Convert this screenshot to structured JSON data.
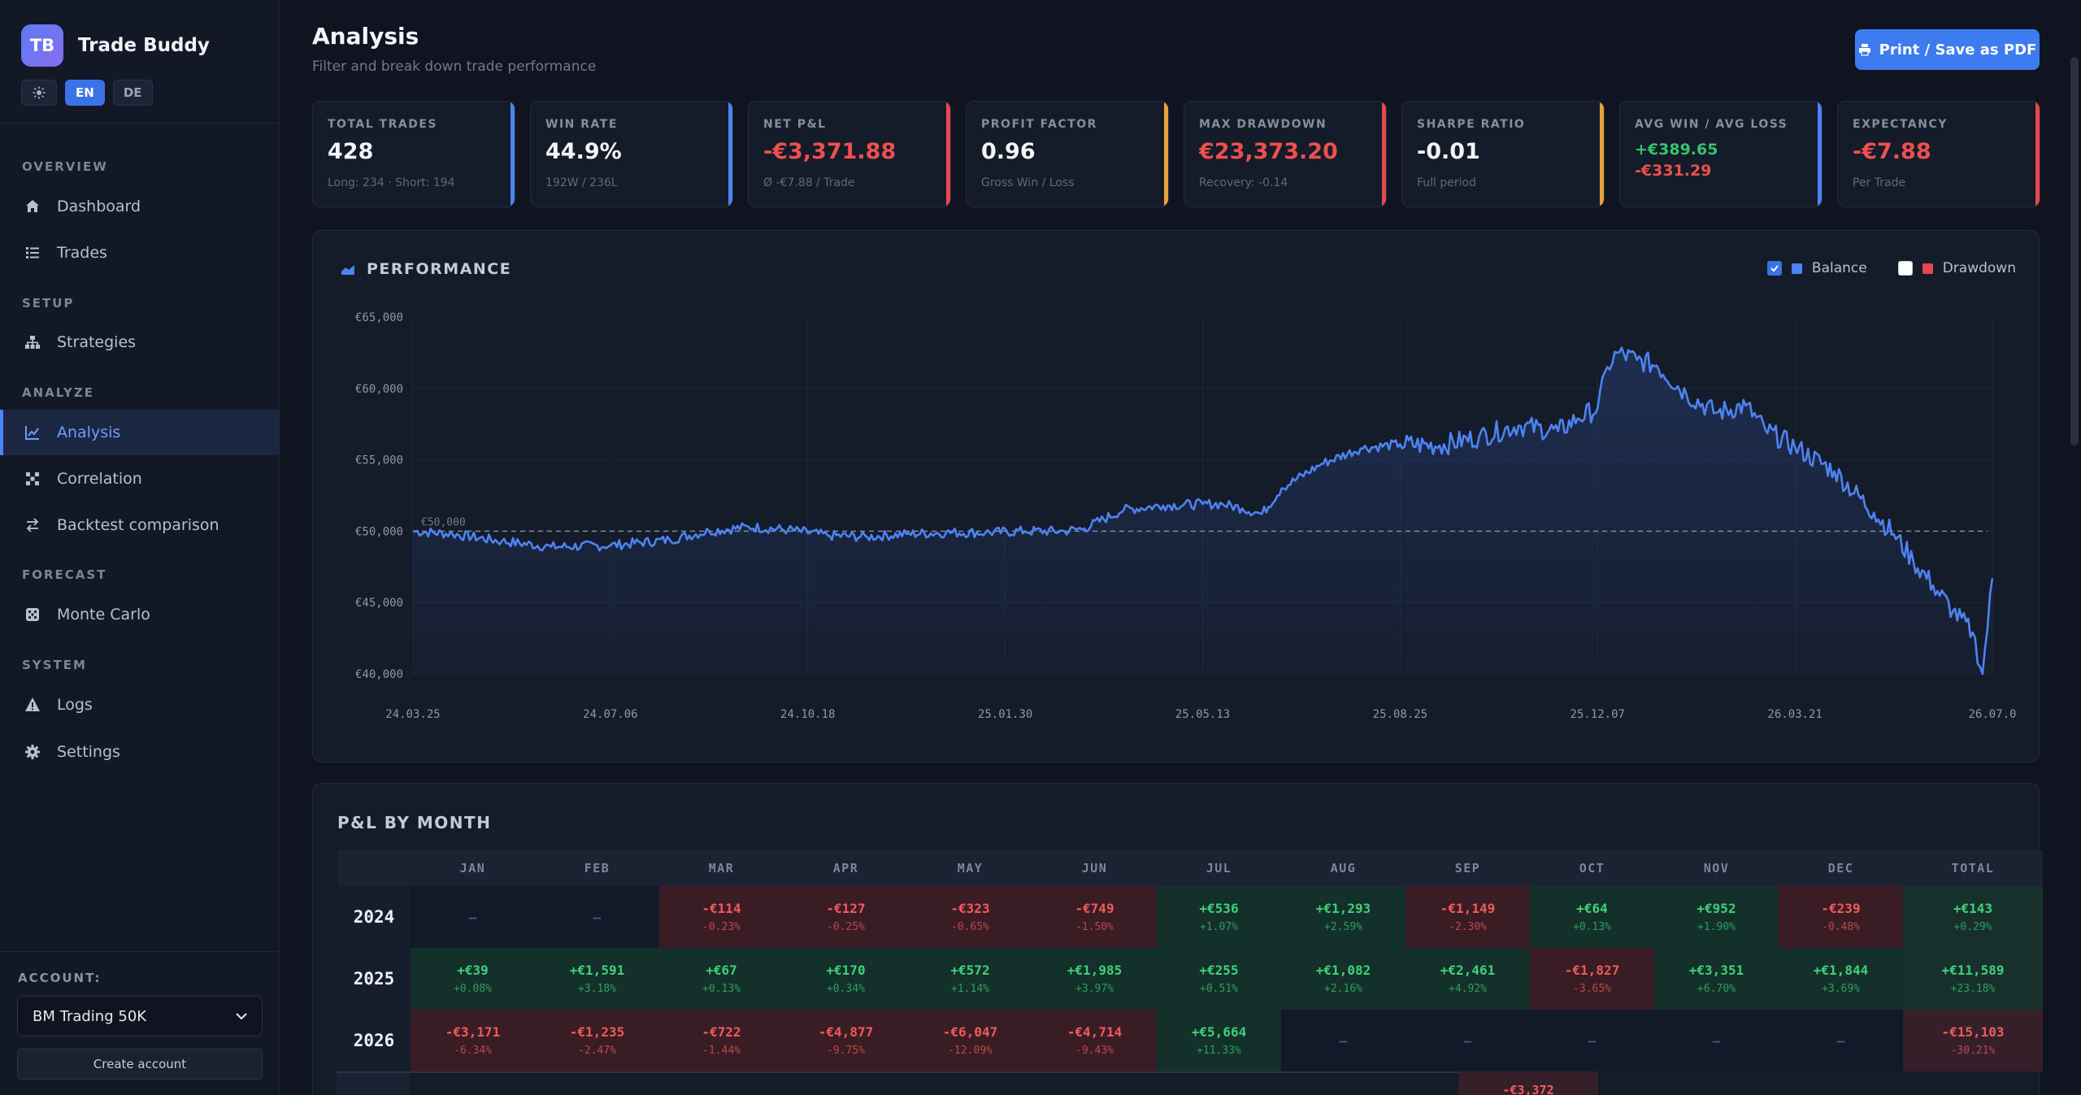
{
  "app": {
    "logo": "TB",
    "name": "Trade Buddy"
  },
  "lang": {
    "theme_icon": "sun-icon",
    "options": [
      "EN",
      "DE"
    ],
    "active": "EN"
  },
  "nav": {
    "sections": [
      {
        "title": "OVERVIEW",
        "items": [
          {
            "label": "Dashboard",
            "icon": "home-icon"
          },
          {
            "label": "Trades",
            "icon": "list-icon"
          }
        ]
      },
      {
        "title": "SETUP",
        "items": [
          {
            "label": "Strategies",
            "icon": "sitemap-icon"
          }
        ]
      },
      {
        "title": "ANALYZE",
        "items": [
          {
            "label": "Analysis",
            "icon": "chart-line-icon",
            "active": true
          },
          {
            "label": "Correlation",
            "icon": "network-icon"
          },
          {
            "label": "Backtest comparison",
            "icon": "swap-icon"
          }
        ]
      },
      {
        "title": "FORECAST",
        "items": [
          {
            "label": "Monte Carlo",
            "icon": "dice-icon"
          }
        ]
      },
      {
        "title": "SYSTEM",
        "items": [
          {
            "label": "Logs",
            "icon": "warning-icon"
          },
          {
            "label": "Settings",
            "icon": "gear-icon"
          }
        ]
      }
    ]
  },
  "account": {
    "label": "ACCOUNT:",
    "selected": "BM Trading 50K",
    "create_label": "Create account"
  },
  "header": {
    "title": "Analysis",
    "subtitle": "Filter and break down trade performance",
    "print_label": "Print / Save as PDF"
  },
  "kpis": [
    {
      "label": "TOTAL TRADES",
      "value": "428",
      "sub": "Long: 234 · Short: 194",
      "accent": "#4d83f2",
      "value_color": "#f2f4f8"
    },
    {
      "label": "WIN RATE",
      "value": "44.9%",
      "sub": "192W / 236L",
      "accent": "#4d83f2",
      "value_color": "#f2f4f8"
    },
    {
      "label": "NET P&L",
      "value": "-€3,371.88",
      "sub": "Ø -€7.88 / Trade",
      "accent": "#e6484e",
      "value_color": "#ee4f4f"
    },
    {
      "label": "PROFIT FACTOR",
      "value": "0.96",
      "sub": "Gross Win / Loss",
      "accent": "#e8a23a",
      "value_color": "#f2f4f8"
    },
    {
      "label": "MAX DRAWDOWN",
      "value": "€23,373.20",
      "sub": "Recovery: -0.14",
      "accent": "#e6484e",
      "value_color": "#ee4f4f"
    },
    {
      "label": "SHARPE RATIO",
      "value": "-0.01",
      "sub": "Full period",
      "accent": "#e8a23a",
      "value_color": "#f2f4f8"
    },
    {
      "label": "AVG WIN / AVG LOSS",
      "value_win": "+€389.65",
      "value_loss": "-€331.29",
      "accent": "#4d83f2"
    },
    {
      "label": "EXPECTANCY",
      "value": "-€7.88",
      "sub": "Per Trade",
      "accent": "#e6484e",
      "value_color": "#ee4f4f"
    }
  ],
  "performance": {
    "title": "PERFORMANCE",
    "icon": "area-chart-icon",
    "legend": [
      {
        "label": "Balance",
        "checked": true,
        "color": "#4d83f2"
      },
      {
        "label": "Drawdown",
        "checked": false,
        "color": "#e6484e"
      }
    ]
  },
  "chart_data": {
    "type": "line",
    "series": [
      {
        "name": "Balance",
        "color": "#4d83f2"
      }
    ],
    "baseline": {
      "value": 50000,
      "label": "€50,000"
    },
    "y_ticks": [
      "€65,000",
      "€60,000",
      "€55,000",
      "€50,000",
      "€45,000",
      "€40,000"
    ],
    "ylim": [
      40000,
      65000
    ],
    "x_ticks": [
      "24.03.25",
      "24.07.06",
      "24.10.18",
      "25.01.30",
      "25.05.13",
      "25.08.25",
      "25.12.07",
      "26.03.21",
      "26.07.0"
    ],
    "points": [
      [
        0,
        50000
      ],
      [
        0.2,
        49800
      ],
      [
        0.45,
        49300
      ],
      [
        0.7,
        48900
      ],
      [
        1.0,
        49000
      ],
      [
        1.3,
        49400
      ],
      [
        1.5,
        50000
      ],
      [
        1.7,
        50300
      ],
      [
        1.9,
        50100
      ],
      [
        2.1,
        49700
      ],
      [
        2.3,
        49600
      ],
      [
        2.5,
        49800
      ],
      [
        2.7,
        49900
      ],
      [
        2.9,
        49900
      ],
      [
        3.1,
        50000
      ],
      [
        3.3,
        50000
      ],
      [
        3.4,
        50200
      ],
      [
        3.6,
        51500
      ],
      [
        3.8,
        51800
      ],
      [
        4.0,
        51900
      ],
      [
        4.1,
        51900
      ],
      [
        4.2,
        51600
      ],
      [
        4.3,
        51200
      ],
      [
        4.4,
        53000
      ],
      [
        4.6,
        54700
      ],
      [
        4.8,
        55800
      ],
      [
        5.0,
        56100
      ],
      [
        5.2,
        56000
      ],
      [
        5.4,
        56600
      ],
      [
        5.6,
        57400
      ],
      [
        5.8,
        57000
      ],
      [
        5.9,
        57900
      ],
      [
        6.0,
        58600
      ],
      [
        6.05,
        61500
      ],
      [
        6.1,
        62500
      ],
      [
        6.2,
        62000
      ],
      [
        6.3,
        61600
      ],
      [
        6.45,
        59600
      ],
      [
        6.6,
        58300
      ],
      [
        6.75,
        58800
      ],
      [
        6.85,
        57100
      ],
      [
        7.0,
        55900
      ],
      [
        7.2,
        54200
      ],
      [
        7.4,
        51300
      ],
      [
        7.5,
        49800
      ],
      [
        7.6,
        47900
      ],
      [
        7.7,
        46200
      ],
      [
        7.8,
        44400
      ],
      [
        7.9,
        42900
      ],
      [
        7.95,
        40000
      ],
      [
        8.0,
        46700
      ]
    ]
  },
  "pl_by_month": {
    "title": "P&L BY MONTH",
    "columns": [
      "",
      "JAN",
      "FEB",
      "MAR",
      "APR",
      "MAY",
      "JUN",
      "JUL",
      "AUG",
      "SEP",
      "OCT",
      "NOV",
      "DEC",
      "TOTAL"
    ],
    "rows": [
      {
        "year": "2024",
        "cells": [
          {
            "v": "—",
            "p": ""
          },
          {
            "v": "—",
            "p": ""
          },
          {
            "v": "-€114",
            "p": "-0.23%"
          },
          {
            "v": "-€127",
            "p": "-0.25%"
          },
          {
            "v": "-€323",
            "p": "-0.65%"
          },
          {
            "v": "-€749",
            "p": "-1.50%"
          },
          {
            "v": "+€536",
            "p": "+1.07%"
          },
          {
            "v": "+€1,293",
            "p": "+2.59%"
          },
          {
            "v": "-€1,149",
            "p": "-2.30%"
          },
          {
            "v": "+€64",
            "p": "+0.13%"
          },
          {
            "v": "+€952",
            "p": "+1.90%"
          },
          {
            "v": "-€239",
            "p": "-0.48%"
          }
        ],
        "total": {
          "v": "+€143",
          "p": "+0.29%"
        }
      },
      {
        "year": "2025",
        "cells": [
          {
            "v": "+€39",
            "p": "+0.08%"
          },
          {
            "v": "+€1,591",
            "p": "+3.18%"
          },
          {
            "v": "+€67",
            "p": "+0.13%"
          },
          {
            "v": "+€170",
            "p": "+0.34%"
          },
          {
            "v": "+€572",
            "p": "+1.14%"
          },
          {
            "v": "+€1,985",
            "p": "+3.97%"
          },
          {
            "v": "+€255",
            "p": "+0.51%"
          },
          {
            "v": "+€1,082",
            "p": "+2.16%"
          },
          {
            "v": "+€2,461",
            "p": "+4.92%"
          },
          {
            "v": "-€1,827",
            "p": "-3.65%"
          },
          {
            "v": "+€3,351",
            "p": "+6.70%"
          },
          {
            "v": "+€1,844",
            "p": "+3.69%"
          }
        ],
        "total": {
          "v": "+€11,589",
          "p": "+23.18%"
        }
      },
      {
        "year": "2026",
        "cells": [
          {
            "v": "-€3,171",
            "p": "-6.34%"
          },
          {
            "v": "-€1,235",
            "p": "-2.47%"
          },
          {
            "v": "-€722",
            "p": "-1.44%"
          },
          {
            "v": "-€4,877",
            "p": "-9.75%"
          },
          {
            "v": "-€6,047",
            "p": "-12.09%"
          },
          {
            "v": "-€4,714",
            "p": "-9.43%"
          },
          {
            "v": "+€5,664",
            "p": "+11.33%"
          },
          {
            "v": "—",
            "p": ""
          },
          {
            "v": "—",
            "p": ""
          },
          {
            "v": "—",
            "p": ""
          },
          {
            "v": "—",
            "p": ""
          },
          {
            "v": "—",
            "p": ""
          }
        ],
        "total": {
          "v": "-€15,103",
          "p": "-30.21%"
        }
      }
    ],
    "grand_total": "-€3,372"
  }
}
